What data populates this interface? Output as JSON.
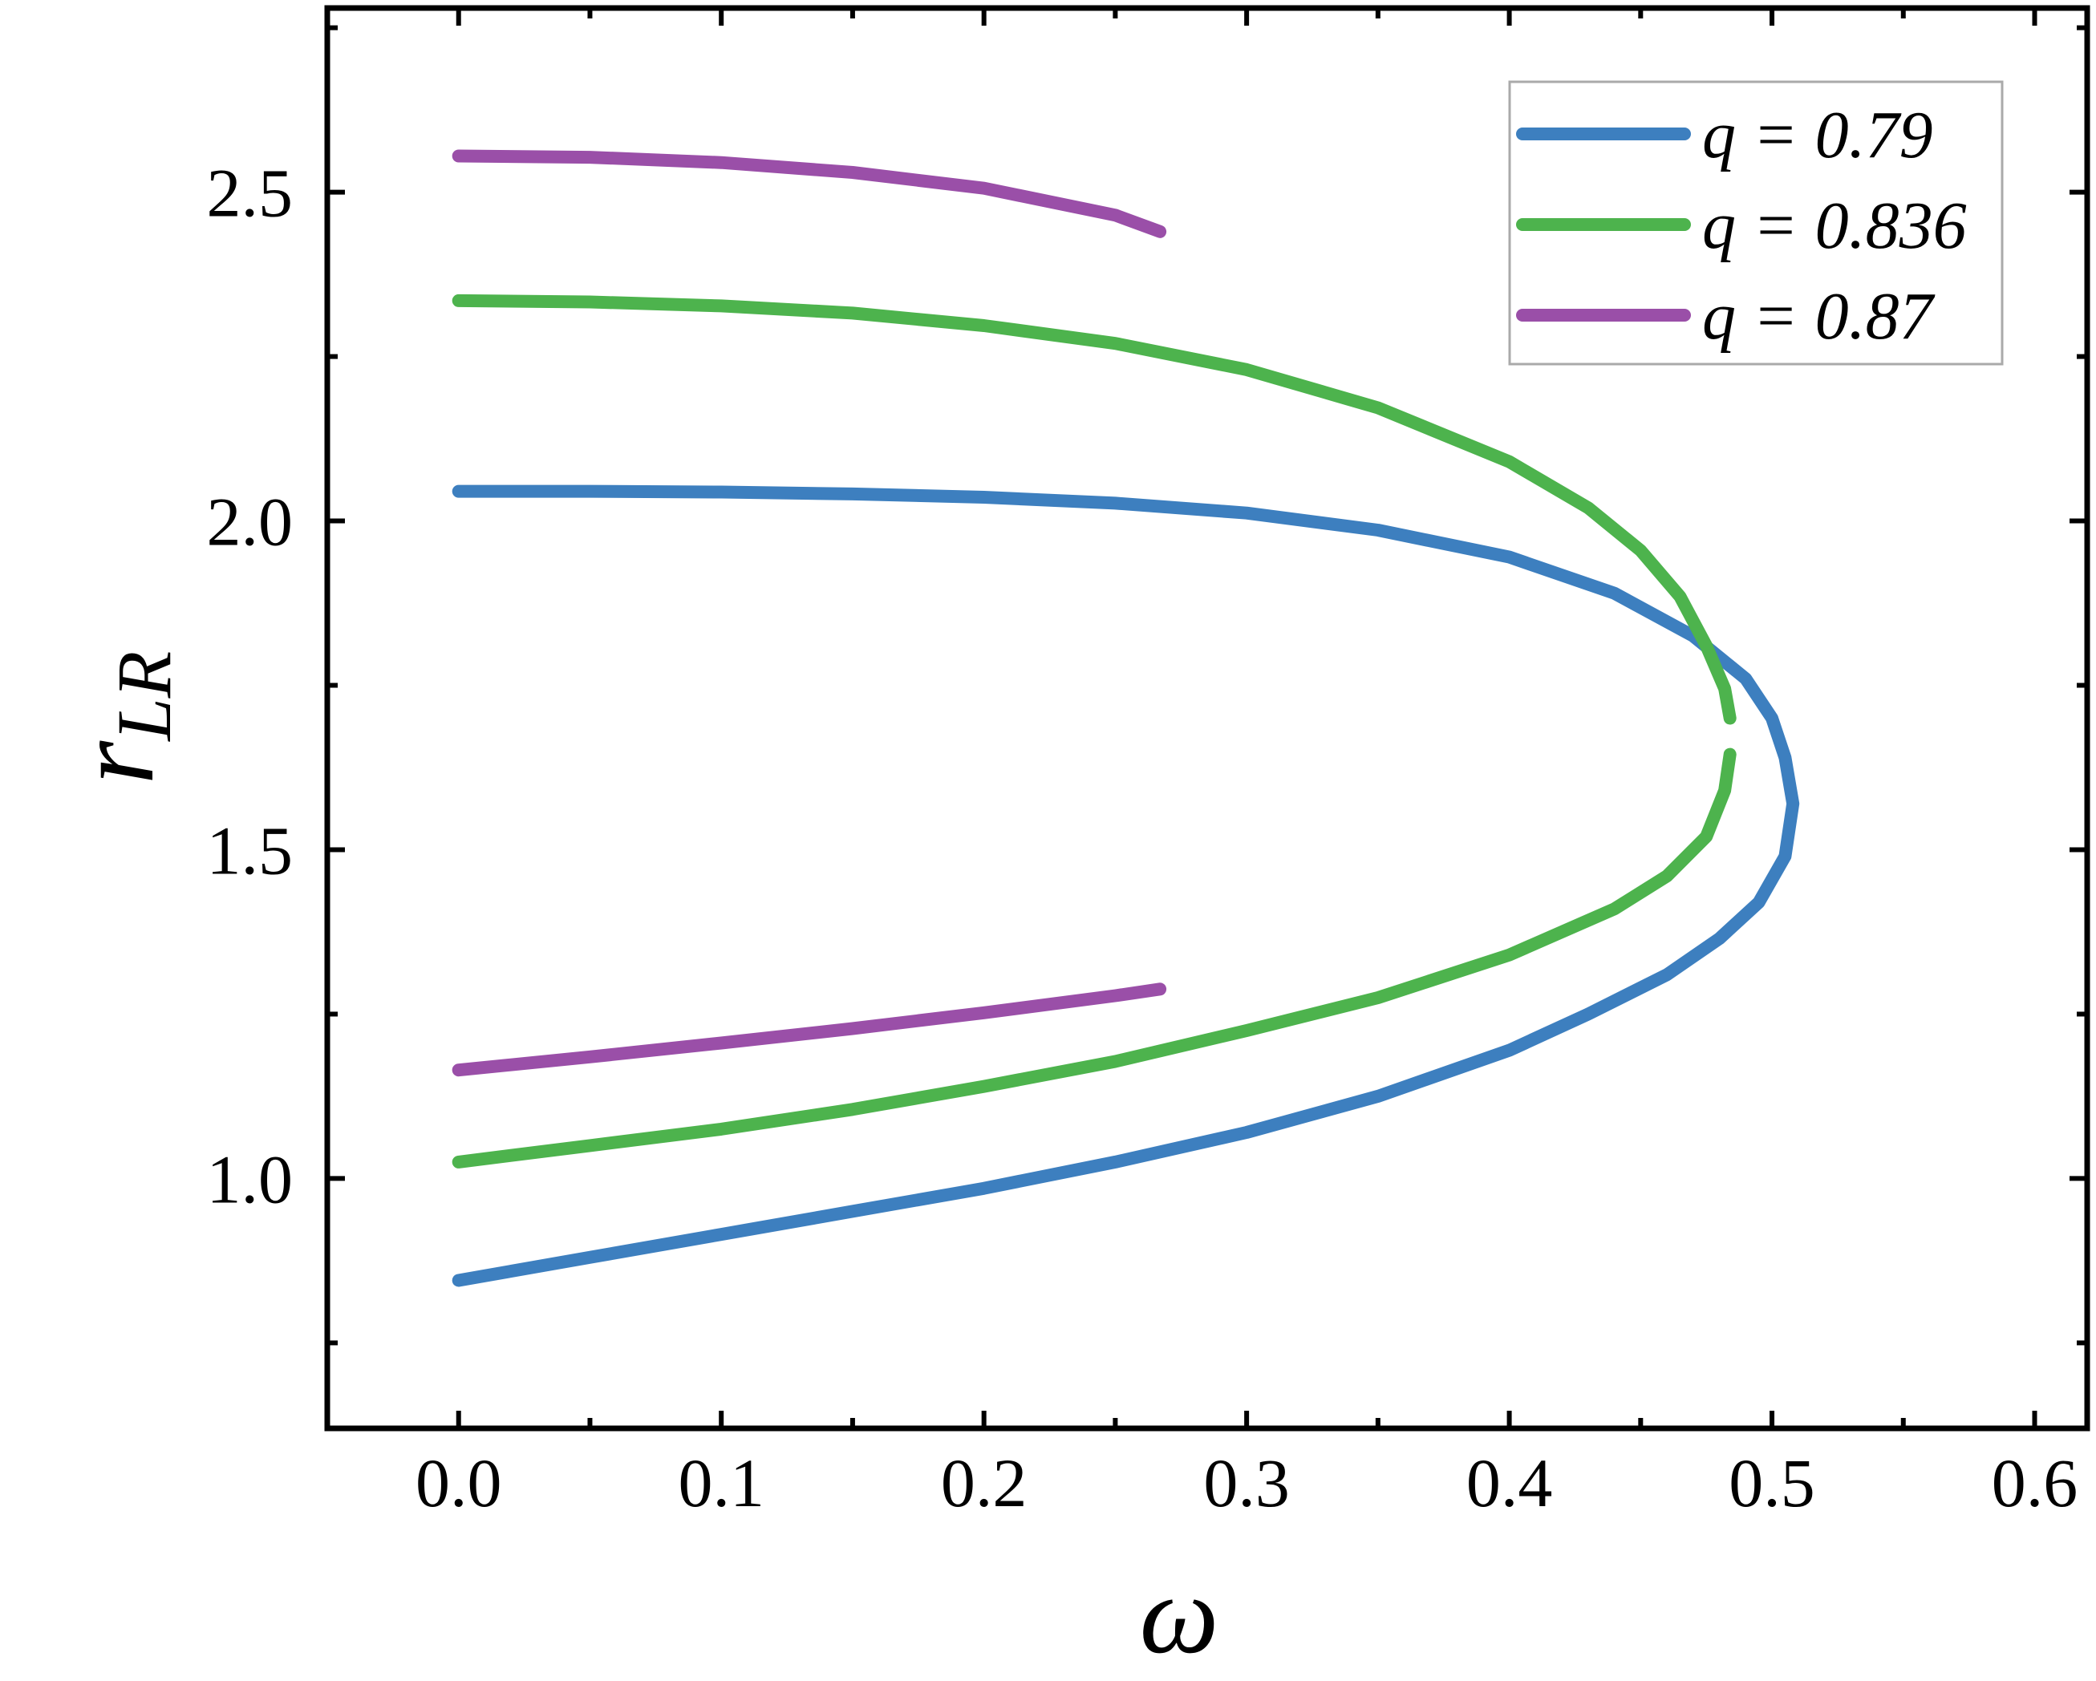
{
  "chart_data": {
    "type": "line",
    "xlabel": "ω",
    "ylabel": {
      "main": "r",
      "sub": "LR"
    },
    "xlim": [
      -0.05,
      0.62
    ],
    "ylim": [
      0.62,
      2.78
    ],
    "x_ticks": [
      0.0,
      0.1,
      0.2,
      0.3,
      0.4,
      0.5,
      0.6
    ],
    "x_tick_labels": [
      "0.0",
      "0.1",
      "0.2",
      "0.3",
      "0.4",
      "0.5",
      "0.6"
    ],
    "x_minor_ticks": [
      0.05,
      0.15,
      0.25,
      0.35,
      0.45,
      0.55
    ],
    "y_ticks": [
      1.0,
      1.5,
      2.0,
      2.5
    ],
    "y_tick_labels": [
      "1.0",
      "1.5",
      "2.0",
      "2.5"
    ],
    "y_minor_ticks": [
      0.75,
      1.25,
      1.75,
      2.25,
      2.75
    ],
    "grid": false,
    "legend_position": "top-right",
    "series": [
      {
        "name": "q = 0.79",
        "color": "#3d7fbf",
        "segments": [
          [
            [
              0.0,
              2.045
            ],
            [
              0.05,
              2.045
            ],
            [
              0.1,
              2.044
            ],
            [
              0.15,
              2.041
            ],
            [
              0.2,
              2.036
            ],
            [
              0.25,
              2.027
            ],
            [
              0.3,
              2.012
            ],
            [
              0.35,
              1.986
            ],
            [
              0.4,
              1.945
            ],
            [
              0.44,
              1.89
            ],
            [
              0.47,
              1.825
            ],
            [
              0.49,
              1.76
            ],
            [
              0.5,
              1.7
            ],
            [
              0.505,
              1.64
            ],
            [
              0.508,
              1.57
            ],
            [
              0.505,
              1.49
            ],
            [
              0.495,
              1.42
            ],
            [
              0.48,
              1.365
            ],
            [
              0.46,
              1.31
            ],
            [
              0.43,
              1.25
            ],
            [
              0.4,
              1.195
            ],
            [
              0.35,
              1.125
            ],
            [
              0.3,
              1.07
            ],
            [
              0.25,
              1.025
            ],
            [
              0.2,
              0.985
            ],
            [
              0.15,
              0.95
            ],
            [
              0.1,
              0.915
            ],
            [
              0.05,
              0.88
            ],
            [
              0.0,
              0.845
            ]
          ]
        ]
      },
      {
        "name": "q = 0.836",
        "color": "#4db34d",
        "segments": [
          [
            [
              0.0,
              2.335
            ],
            [
              0.05,
              2.333
            ],
            [
              0.1,
              2.327
            ],
            [
              0.15,
              2.316
            ],
            [
              0.2,
              2.297
            ],
            [
              0.25,
              2.27
            ],
            [
              0.3,
              2.23
            ],
            [
              0.35,
              2.172
            ],
            [
              0.4,
              2.09
            ],
            [
              0.43,
              2.02
            ],
            [
              0.45,
              1.955
            ],
            [
              0.465,
              1.885
            ],
            [
              0.475,
              1.81
            ],
            [
              0.482,
              1.745
            ],
            [
              0.484,
              1.7
            ]
          ],
          [
            [
              0.484,
              1.645
            ],
            [
              0.482,
              1.59
            ],
            [
              0.475,
              1.52
            ],
            [
              0.46,
              1.46
            ],
            [
              0.44,
              1.41
            ],
            [
              0.4,
              1.34
            ],
            [
              0.35,
              1.275
            ],
            [
              0.3,
              1.225
            ],
            [
              0.25,
              1.178
            ],
            [
              0.2,
              1.14
            ],
            [
              0.15,
              1.105
            ],
            [
              0.1,
              1.075
            ],
            [
              0.05,
              1.05
            ],
            [
              0.0,
              1.025
            ]
          ]
        ]
      },
      {
        "name": "q = 0.87",
        "color": "#9a4fa8",
        "segments": [
          [
            [
              0.0,
              2.555
            ],
            [
              0.05,
              2.553
            ],
            [
              0.1,
              2.545
            ],
            [
              0.15,
              2.53
            ],
            [
              0.2,
              2.506
            ],
            [
              0.25,
              2.465
            ],
            [
              0.267,
              2.44
            ]
          ],
          [
            [
              0.0,
              1.165
            ],
            [
              0.05,
              1.185
            ],
            [
              0.1,
              1.206
            ],
            [
              0.15,
              1.228
            ],
            [
              0.2,
              1.252
            ],
            [
              0.25,
              1.278
            ],
            [
              0.267,
              1.288
            ]
          ]
        ]
      }
    ]
  }
}
